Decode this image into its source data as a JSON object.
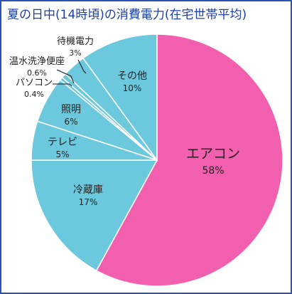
{
  "chart_data": {
    "type": "pie",
    "title": "夏の日中(14時頃)の消費電力(在宅世帯平均)",
    "start_angle_deg": 0,
    "direction": "clockwise",
    "slices": [
      {
        "name": "エアコン",
        "value": 58,
        "value_label": "58%",
        "color": "#f25fae"
      },
      {
        "name": "冷蔵庫",
        "value": 17,
        "value_label": "17%",
        "color": "#6cc8dc"
      },
      {
        "name": "テレビ",
        "value": 5,
        "value_label": "5%",
        "color": "#6cc8dc"
      },
      {
        "name": "照明",
        "value": 6,
        "value_label": "6%",
        "color": "#6cc8dc"
      },
      {
        "name": "パソコン",
        "value": 0.4,
        "value_label": "0.4%",
        "color": "#6cc8dc"
      },
      {
        "name": "温水洗浄便座",
        "value": 0.6,
        "value_label": "0.6%",
        "color": "#6cc8dc"
      },
      {
        "name": "待機電力",
        "value": 3,
        "value_label": "3%",
        "color": "#6cc8dc"
      },
      {
        "name": "その他",
        "value": 10,
        "value_label": "10%",
        "color": "#6cc8dc"
      }
    ],
    "slice_border_color": "#ffffff"
  },
  "frame_color": "#2a52b8",
  "title_color": "#1f3fa8"
}
